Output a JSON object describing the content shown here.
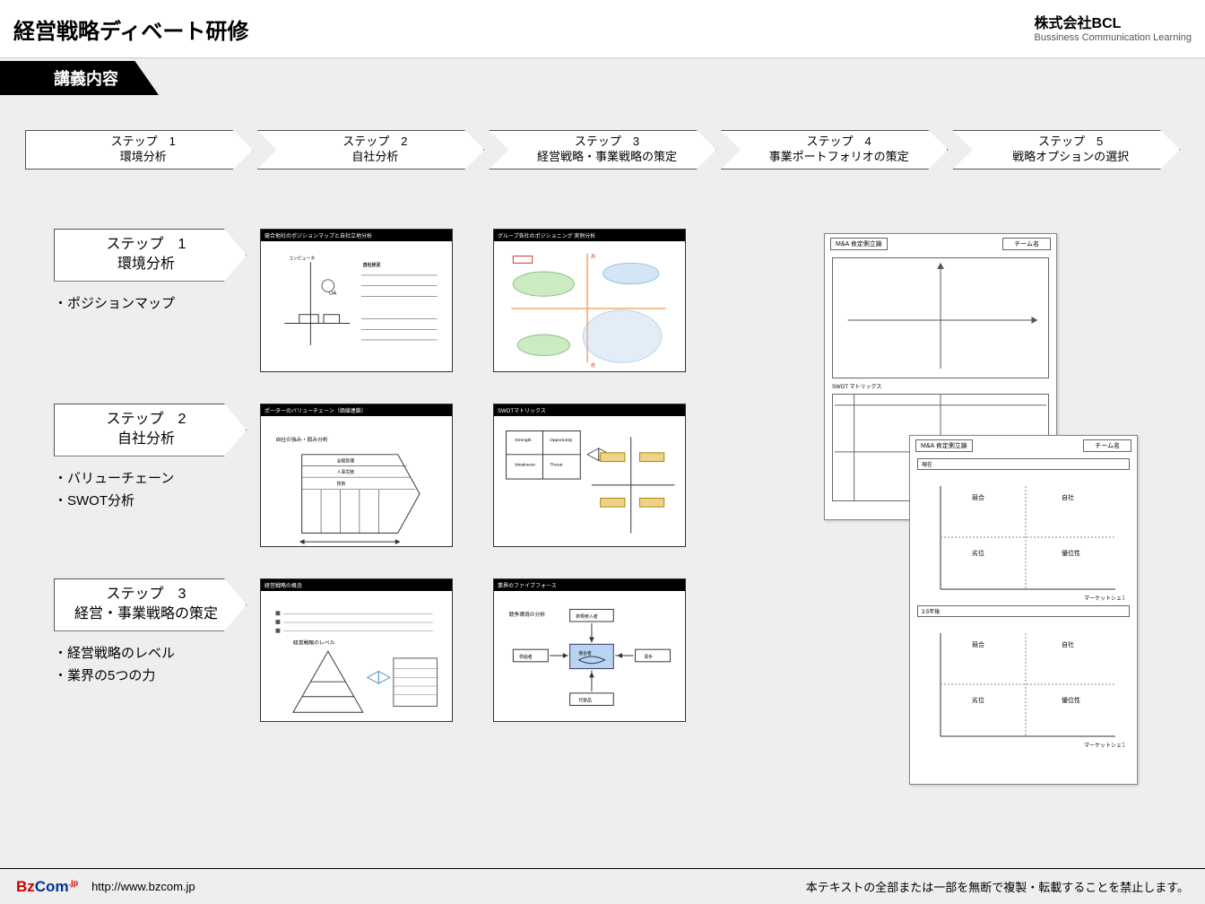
{
  "header": {
    "title": "経営戦略ディベート研修",
    "company_jp": "株式会社BCL",
    "company_en": "Bussiness Communication Learning"
  },
  "section_tab": "講義内容",
  "flow_steps": [
    {
      "line1": "ステップ　1",
      "line2": "環境分析"
    },
    {
      "line1": "ステップ　2",
      "line2": "自社分析"
    },
    {
      "line1": "ステップ　3",
      "line2": "経営戦略・事業戦略の策定"
    },
    {
      "line1": "ステップ　4",
      "line2": "事業ポートフォリオの策定"
    },
    {
      "line1": "ステップ　5",
      "line2": "戦略オプションの選択"
    }
  ],
  "rows": [
    {
      "step_line1": "ステップ　1",
      "step_line2": "環境分析",
      "bullets": [
        "ポジションマップ"
      ],
      "thumbs": [
        {
          "title": "競合他社のポジションマップと自社立地分析"
        },
        {
          "title": "グループ各社のポジショニング 実例分析"
        }
      ]
    },
    {
      "step_line1": "ステップ　2",
      "step_line2": "自社分析",
      "bullets": [
        "バリューチェーン",
        "SWOT分析"
      ],
      "thumbs": [
        {
          "title": "ポーターのバリューチェーン（価値連鎖）"
        },
        {
          "title": "SWOTマトリックス"
        }
      ]
    },
    {
      "step_line1": "ステップ　3",
      "step_line2": "経営・事業戦略の策定",
      "bullets": [
        "経営戦略のレベル",
        "業界の5つの力"
      ],
      "thumbs": [
        {
          "title": "経営戦略の概念"
        },
        {
          "title": "業界のファイブフォース"
        }
      ]
    }
  ],
  "worksheets": [
    {
      "title": "M&A 肯定側立論",
      "sub": "チーム名"
    },
    {
      "title": "SWOT マトリックス"
    },
    {
      "title": "M&A 肯定側立論",
      "sub": "チーム名"
    }
  ],
  "footer": {
    "url": "http://www.bzcom.jp",
    "copyright": "本テキストの全部または一部を無断で複製・転載することを禁止します。"
  },
  "colors": {
    "bg": "#eeeeee",
    "border": "#333333",
    "accent_blue": "#003399",
    "accent_red": "#cc0000",
    "thumb_green": "#b9e3a9",
    "thumb_blue": "#b9d4f0",
    "thumb_orange": "#f4a460"
  }
}
